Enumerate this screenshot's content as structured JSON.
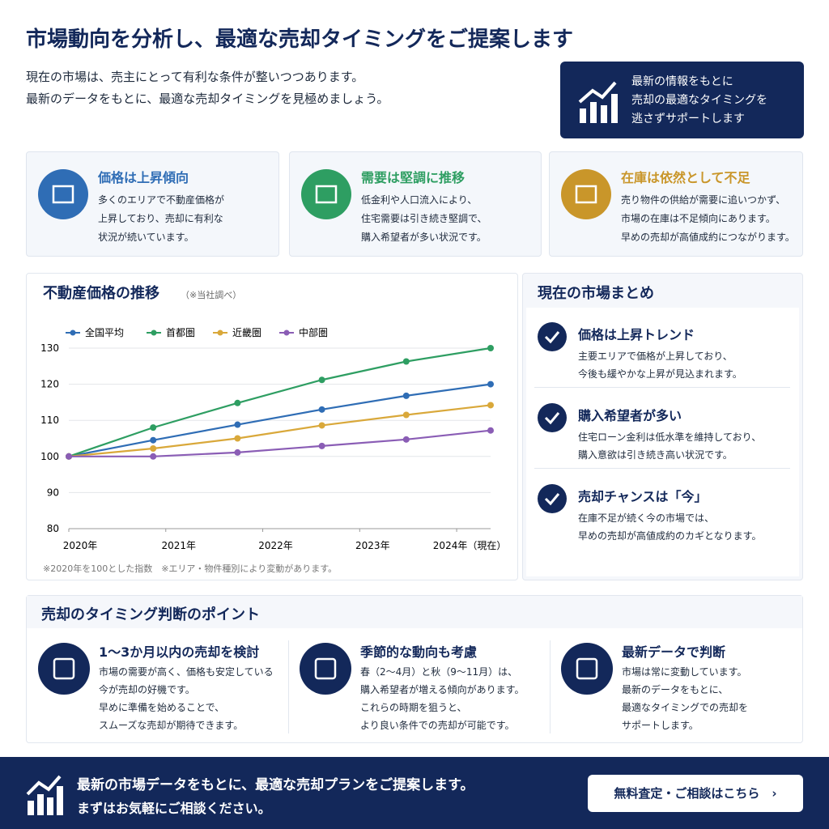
{
  "header": {
    "title": "市場動向を分析し、最適な売却タイミングをご提案します",
    "lead": [
      "現在の市場は、売主にとって有利な条件が整いつつあります。",
      "最新のデータをもとに、最適な売却タイミングを見極めましょう。"
    ],
    "badge": [
      "最新の情報をもとに",
      "売却の最適なタイミングを",
      "逃さずサポートします"
    ]
  },
  "cards": [
    {
      "title": "価格は上昇傾向",
      "lines": [
        "多くのエリアで不動産価格が",
        "上昇しており、売却に有利な",
        "状況が続いています。"
      ]
    },
    {
      "title": "需要は堅調に推移",
      "lines": [
        "低金利や人口流入により、",
        "住宅需要は引き続き堅調で、",
        "購入希望者が多い状況です。"
      ]
    },
    {
      "title": "在庫は依然として不足",
      "lines": [
        "売り物件の供給が需要に追いつかず、",
        "市場の在庫は不足傾向にあります。",
        "早めの売却が高値成約につながります。"
      ]
    }
  ],
  "chart_data": {
    "type": "line",
    "title": "不動産価格の推移",
    "subtitle": "（※当社調べ）",
    "note": "※2020年を100とした指数　※エリア・物件種別により変動があります。",
    "x": [
      2020,
      2020.87,
      2021.74,
      2022.61,
      2023.48,
      2024.35
    ],
    "series": [
      {
        "name": "全国平均",
        "color": "#2f6db5",
        "values": [
          100,
          104.5,
          108.8,
          113,
          116.8,
          120
        ]
      },
      {
        "name": "首都圏",
        "color": "#2e9e62",
        "values": [
          100,
          108,
          114.8,
          121.2,
          126.3,
          130
        ]
      },
      {
        "name": "近畿圏",
        "color": "#d9a83a",
        "values": [
          100,
          102.2,
          105,
          108.6,
          111.5,
          114.2
        ]
      },
      {
        "name": "中部圏",
        "color": "#8a5db5",
        "values": [
          100,
          100,
          101.1,
          102.9,
          104.7,
          107.2
        ]
      }
    ],
    "xlim": [
      2020,
      2024.35
    ],
    "xticks": [
      {
        "value": 2020,
        "label": "2020年"
      },
      {
        "value": 2021,
        "label": "2021年"
      },
      {
        "value": 2022,
        "label": "2022年"
      },
      {
        "value": 2023,
        "label": "2023年"
      },
      {
        "value": 2024,
        "label": "2024年（現在）"
      }
    ],
    "ylim": [
      80,
      130
    ],
    "yticks": [
      80,
      90,
      100,
      110,
      120,
      130
    ],
    "grid": true,
    "legend": "top"
  },
  "summary": {
    "title": "現在の市場まとめ",
    "items": [
      {
        "title": "価格は上昇トレンド",
        "lines": [
          "主要エリアで価格が上昇しており、",
          "今後も緩やかな上昇が見込まれます。"
        ]
      },
      {
        "title": "購入希望者が多い",
        "lines": [
          "住宅ローン金利は低水準を維持しており、",
          "購入意欲は引き続き高い状況です。"
        ]
      },
      {
        "title": "売却チャンスは「今」",
        "lines": [
          "在庫不足が続く今の市場では、",
          "早めの売却が高値成約のカギとなります。"
        ]
      }
    ]
  },
  "points": {
    "title": "売却のタイミング判断のポイント",
    "items": [
      {
        "title": "1〜3か月以内の売却を検討",
        "lines": [
          "市場の需要が高く、価格も安定している",
          "今が売却の好機です。",
          "早めに準備を始めることで、",
          "スムーズな売却が期待できます。"
        ]
      },
      {
        "title": "季節的な動向も考慮",
        "lines": [
          "春（2〜4月）と秋（9〜11月）は、",
          "購入希望者が増える傾向があります。",
          "これらの時期を狙うと、",
          "より良い条件での売却が可能です。"
        ]
      },
      {
        "title": "最新データで判断",
        "lines": [
          "市場は常に変動しています。",
          "最新のデータをもとに、",
          "最適なタイミングでの売却を",
          "サポートします。"
        ]
      }
    ]
  },
  "footer": {
    "lines": [
      "最新の市場データをもとに、最適な売却プランをご提案します。",
      "まずはお気軽にご相談ください。"
    ],
    "button": "無料査定・ご相談はこちら"
  }
}
